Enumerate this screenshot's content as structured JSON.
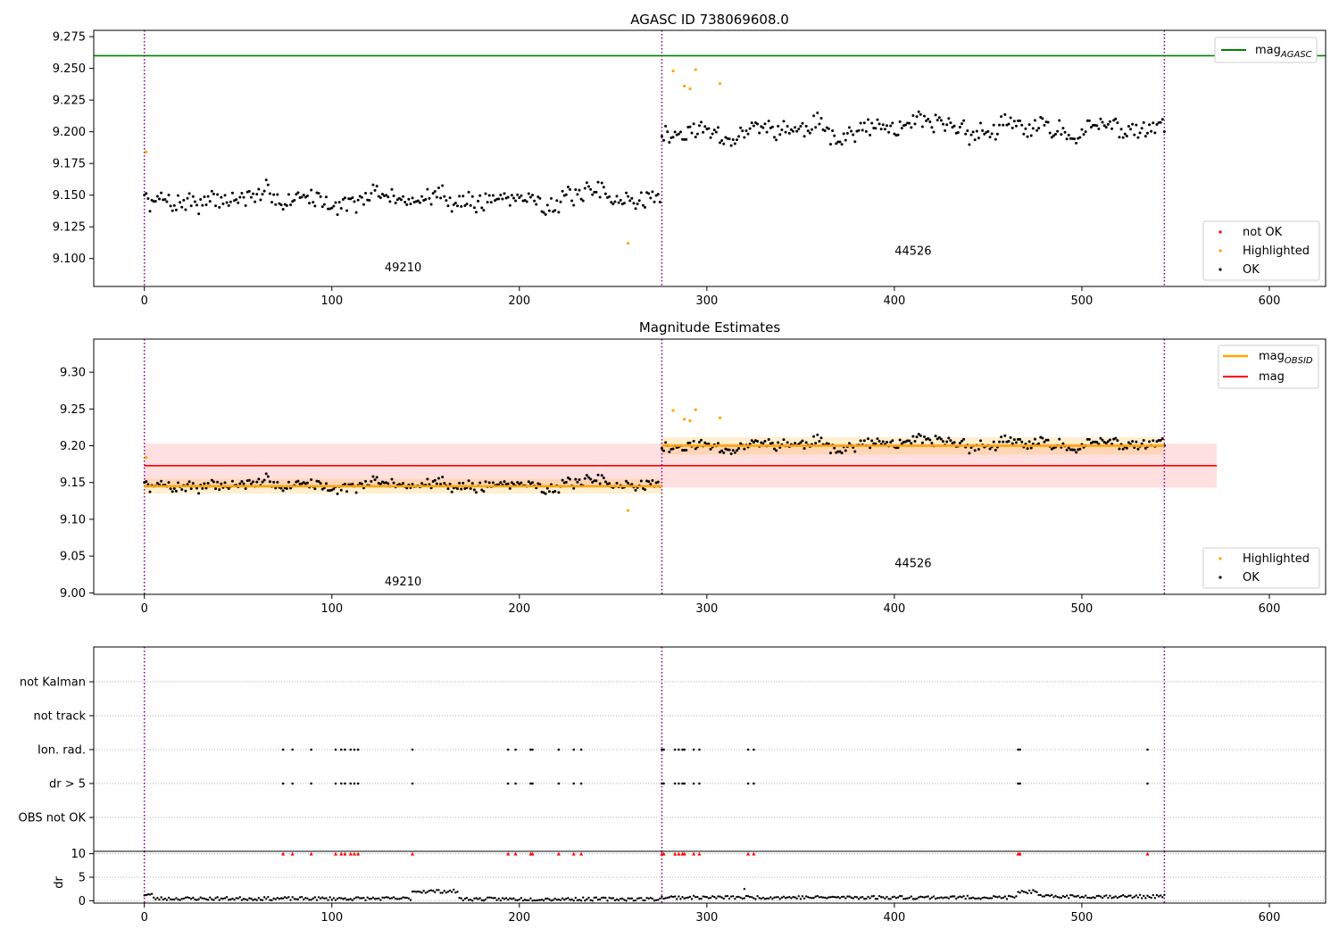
{
  "panels": {
    "top": {
      "title": "AGASC ID 738069608.0"
    },
    "middle": {
      "title": "Magnitude Estimates"
    }
  },
  "obsids": [
    {
      "label": "49210",
      "start": 0,
      "end": 276,
      "mean": 9.145,
      "std": 0.01
    },
    {
      "label": "44526",
      "start": 276,
      "end": 544,
      "mean": 9.2,
      "std": 0.012
    }
  ],
  "legends": {
    "mag_agasc": {
      "base": "mag",
      "sub": "AGASC"
    },
    "mag_obsid": {
      "base": "mag",
      "sub": "OBSID"
    },
    "mag": "mag",
    "not_ok": "not OK",
    "highlighted": "Highlighted",
    "ok": "OK"
  },
  "colors": {
    "ok": "#000000",
    "highlighted": "#ffa500",
    "not_ok": "#ff0000",
    "mag_agasc": "#008000",
    "mag_obsid": "#ffa500",
    "mag": "#ff0000",
    "obsid_line": "#800080"
  },
  "chart_data": [
    {
      "type": "scatter",
      "title": "AGASC ID 738069608.0",
      "xlim": [
        -27,
        630
      ],
      "ylim": [
        9.078,
        9.28
      ],
      "xticks": [
        0,
        100,
        200,
        300,
        400,
        500,
        600
      ],
      "yticks": [
        9.1,
        9.125,
        9.15,
        9.175,
        9.2,
        9.225,
        9.25,
        9.275
      ],
      "mag_agasc": 9.26,
      "obsid_boundaries": [
        0,
        276,
        544
      ],
      "obsid_labels": [
        {
          "text": "49210",
          "x": 138,
          "y": 9.09
        },
        {
          "text": "44526",
          "x": 410,
          "y": 9.103
        }
      ],
      "highlighted_points": [
        [
          1,
          9.184
        ],
        [
          258,
          9.112
        ],
        [
          282,
          9.248
        ],
        [
          288,
          9.236
        ],
        [
          291,
          9.234
        ],
        [
          294,
          9.249
        ],
        [
          307,
          9.238
        ]
      ],
      "ok_series": [
        {
          "start": 0,
          "end": 275,
          "step": 1,
          "base": 9.147,
          "spread": 0.012,
          "seed": 7
        },
        {
          "start": 276,
          "end": 544,
          "step": 1,
          "base": 9.201,
          "spread": 0.012,
          "seed": 11
        }
      ],
      "legend": [
        "mag_AGASC",
        "not OK",
        "Highlighted",
        "OK"
      ]
    },
    {
      "type": "scatter",
      "title": "Magnitude Estimates",
      "xlim": [
        -27,
        630
      ],
      "ylim": [
        8.998,
        9.345
      ],
      "xticks": [
        0,
        100,
        200,
        300,
        400,
        500,
        600
      ],
      "yticks": [
        9.0,
        9.05,
        9.1,
        9.15,
        9.2,
        9.25,
        9.3
      ],
      "mag": 9.173,
      "mag_band": [
        9.143,
        9.203
      ],
      "mag_band_x": [
        0,
        572
      ],
      "obsid_boundaries": [
        0,
        276,
        544
      ],
      "obsid_labels": [
        {
          "text": "49210",
          "x": 138,
          "y": 9.01
        },
        {
          "text": "44526",
          "x": 410,
          "y": 9.035
        }
      ],
      "highlighted_points": [
        [
          1,
          9.184
        ],
        [
          258,
          9.112
        ],
        [
          282,
          9.248
        ],
        [
          288,
          9.236
        ],
        [
          291,
          9.234
        ],
        [
          294,
          9.249
        ],
        [
          307,
          9.238
        ]
      ],
      "ok_series": [
        {
          "start": 0,
          "end": 275,
          "step": 1,
          "base": 9.147,
          "spread": 0.012,
          "seed": 7
        },
        {
          "start": 276,
          "end": 544,
          "step": 1,
          "base": 9.201,
          "spread": 0.012,
          "seed": 11
        }
      ],
      "legend": [
        "mag_OBSID",
        "mag",
        "Highlighted",
        "OK"
      ]
    },
    {
      "type": "scatter",
      "title": "",
      "xlim": [
        -27,
        630
      ],
      "categories": [
        "OBS not OK",
        "dr > 5",
        "Ion. rad.",
        "not track",
        "not Kalman"
      ],
      "flag_x": [
        74,
        79,
        89,
        102,
        105,
        107,
        110,
        112,
        114,
        143,
        194,
        198,
        206,
        207,
        221,
        229,
        233,
        276,
        277,
        283,
        285,
        287,
        288,
        293,
        296,
        322,
        325,
        466,
        467,
        535
      ],
      "flag_rows": [
        "dr > 5",
        "Ion. rad."
      ],
      "obsid_boundaries": [
        0,
        276,
        544
      ]
    },
    {
      "type": "scatter",
      "title": "",
      "xlim": [
        -27,
        630
      ],
      "ylim": [
        -0.5,
        10.5
      ],
      "ylabel": "dr",
      "yticks": [
        0,
        5,
        10
      ],
      "xticks": [
        0,
        100,
        200,
        300,
        400,
        500,
        600
      ],
      "red_markers_at": 10,
      "dr_segments": [
        {
          "start": 0,
          "end": 4,
          "value": 1.3
        },
        {
          "start": 5,
          "end": 142,
          "value": 0.45
        },
        {
          "start": 143,
          "end": 167,
          "value": 2.0
        },
        {
          "start": 168,
          "end": 275,
          "value": 0.35
        },
        {
          "start": 276,
          "end": 465,
          "value": 0.7
        },
        {
          "start": 466,
          "end": 476,
          "value": 1.9
        },
        {
          "start": 477,
          "end": 544,
          "value": 0.9
        }
      ],
      "dr_outliers": [
        [
          320,
          2.5
        ]
      ],
      "obsid_boundaries": [
        0,
        276,
        544
      ]
    }
  ]
}
